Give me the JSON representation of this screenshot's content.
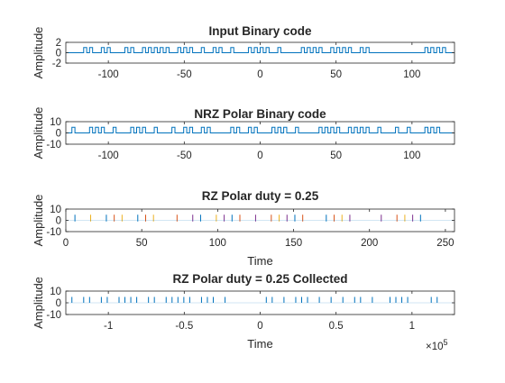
{
  "figure": {
    "background": "#ffffff"
  },
  "chart_data": [
    {
      "type": "line",
      "title": "Input Binary code",
      "xlabel": "",
      "ylabel": "Amplitude",
      "xlim": [
        -128,
        128
      ],
      "ylim": [
        -2,
        2
      ],
      "xticks": [
        -100,
        -50,
        0,
        50,
        100
      ],
      "xtick_labels": [
        "-100",
        "-50",
        "0",
        "50",
        "100"
      ],
      "yticks": [
        -2,
        0,
        2
      ],
      "ytick_labels": [
        "-2",
        "0",
        "2"
      ],
      "signal": {
        "kind": "pulse",
        "low": 0,
        "high": 1,
        "x_start": -124,
        "pulse_width": 2,
        "pulse_count": 64,
        "color": "#0072bd"
      }
    },
    {
      "type": "line",
      "title": "NRZ Polar Binary code",
      "xlabel": "",
      "ylabel": "Amplitude",
      "xlim": [
        -128,
        128
      ],
      "ylim": [
        -10,
        10
      ],
      "xticks": [
        -100,
        -50,
        0,
        50,
        100
      ],
      "xtick_labels": [
        "-100",
        "-50",
        "0",
        "50",
        "100"
      ],
      "yticks": [
        -10,
        0,
        10
      ],
      "ytick_labels": [
        "-10",
        "0",
        "10"
      ],
      "signal": {
        "kind": "pulse",
        "low": 0,
        "high": 5,
        "x_start": -124,
        "pulse_width": 2,
        "pulse_count": 64,
        "color": "#0072bd"
      }
    },
    {
      "type": "line",
      "title": "RZ Polar duty = 0.25",
      "xlabel": "Time",
      "ylabel": "Amplitude",
      "xlim": [
        0,
        256
      ],
      "ylim": [
        -10,
        10
      ],
      "xticks": [
        0,
        50,
        100,
        150,
        200,
        250
      ],
      "xtick_labels": [
        "0",
        "50",
        "100",
        "150",
        "200",
        "250"
      ],
      "yticks": [
        -10,
        0,
        10
      ],
      "ytick_labels": [
        "-10",
        "0",
        "10"
      ],
      "signal": {
        "kind": "spikes",
        "low": -1,
        "high": 5,
        "x_start": 6,
        "count": 48,
        "colors": [
          "#0072bd",
          "#d95319",
          "#edb120",
          "#7e2f8e"
        ]
      }
    },
    {
      "type": "line",
      "title": "RZ Polar duty = 0.25 Collected",
      "xlabel": "Time",
      "ylabel": "Amplitude",
      "xlim": [
        -1.28,
        1.28
      ],
      "ylim": [
        -10,
        10
      ],
      "x_exponent_label": "×10",
      "x_exponent_power": "5",
      "xticks": [
        -1,
        -0.5,
        0,
        0.5,
        1
      ],
      "xtick_labels": [
        "-1",
        "-0.5",
        "0",
        "0.5",
        "1"
      ],
      "yticks": [
        -10,
        0,
        10
      ],
      "ytick_labels": [
        "-10",
        "0",
        "10"
      ],
      "signal": {
        "kind": "spikes",
        "low": 0,
        "high": 5,
        "x_start": -1.24,
        "count": 64,
        "colors": [
          "#0072bd"
        ]
      }
    }
  ]
}
